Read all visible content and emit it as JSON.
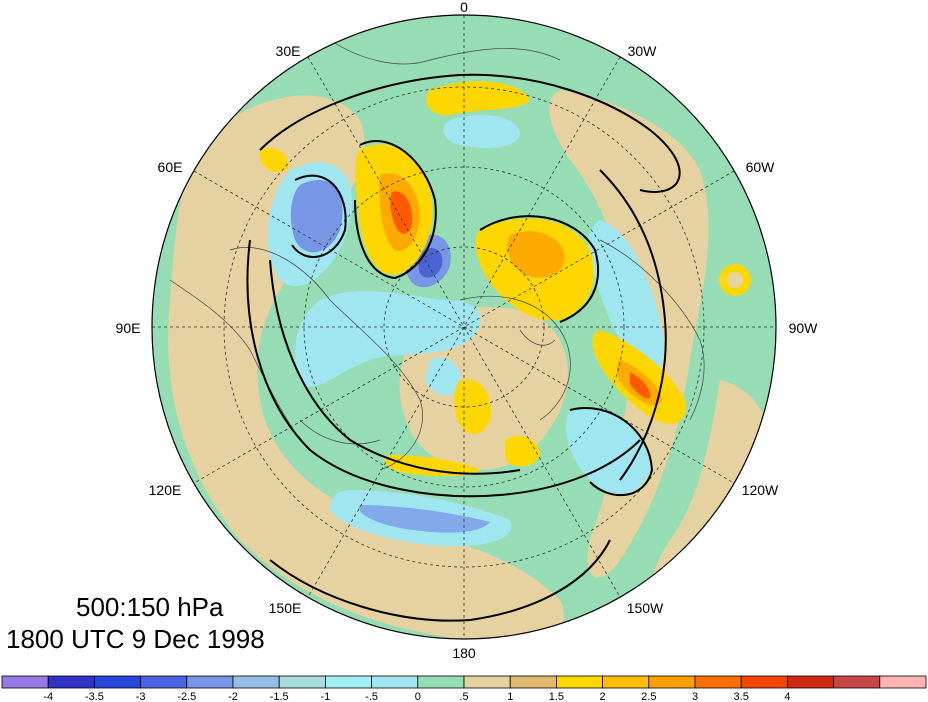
{
  "map": {
    "projection": "north polar stereographic",
    "longitude_labels": [
      {
        "text": "0",
        "lon": 0
      },
      {
        "text": "30W",
        "lon": -30
      },
      {
        "text": "60W",
        "lon": -60
      },
      {
        "text": "90W",
        "lon": -90
      },
      {
        "text": "120W",
        "lon": -120
      },
      {
        "text": "150W",
        "lon": -150
      },
      {
        "text": "180",
        "lon": 180
      },
      {
        "text": "150E",
        "lon": 150
      },
      {
        "text": "120E",
        "lon": 120
      },
      {
        "text": "90E",
        "lon": 90
      },
      {
        "text": "60E",
        "lon": 60
      },
      {
        "text": "30E",
        "lon": 30
      }
    ],
    "colors": {
      "ocean_green": "#96dcb4",
      "tan": "#e6d2a0",
      "light_blue": "#a0e6f0",
      "mid_blue": "#82aaeb",
      "dark_blue": "#4b64d2",
      "yellow": "#ffd700",
      "orange": "#ffaa00",
      "red_orange": "#ff5a00"
    }
  },
  "captions": {
    "level": "500:150 hPa",
    "time": "1800 UTC 9 Dec 1998"
  },
  "colorbar": {
    "colors": [
      "#9678e6",
      "#3232c8",
      "#2846dc",
      "#4b64e1",
      "#7896e6",
      "#96bee6",
      "#aadcdc",
      "#a0f0f5",
      "#a0e6f0",
      "#96dcb4",
      "#e6d2a0",
      "#e1b96e",
      "#ffd700",
      "#ffbe00",
      "#ffa000",
      "#ff6e00",
      "#f04600",
      "#d22814",
      "#c84646",
      "#ffb4b4"
    ],
    "ticks": [
      "-4",
      "-3.5",
      "-3",
      "-2.5",
      "-2",
      "-1.5",
      "-1",
      "-.5",
      "0",
      ".5",
      "1",
      "1.5",
      "2",
      "2.5",
      "3",
      "3.5",
      "4"
    ]
  }
}
